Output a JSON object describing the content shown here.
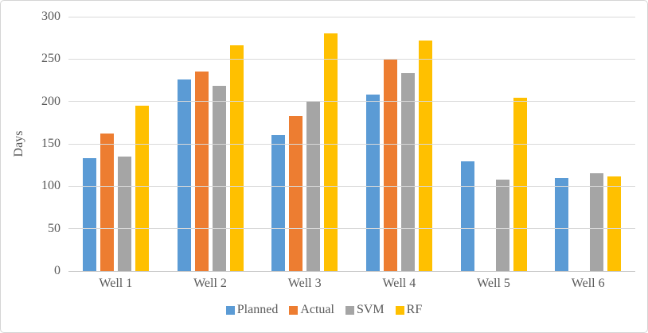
{
  "chart_data": {
    "type": "bar",
    "title": "",
    "xlabel": "",
    "ylabel": "Days",
    "ylim": [
      0,
      300
    ],
    "yticks": [
      0,
      50,
      100,
      150,
      200,
      250,
      300
    ],
    "grid": true,
    "legend_position": "bottom",
    "categories": [
      "Well 1",
      "Well 2",
      "Well 3",
      "Well 4",
      "Well 5",
      "Well 6"
    ],
    "series": [
      {
        "name": "Planned",
        "color": "#5B9BD5",
        "values": [
          133,
          226,
          160,
          208,
          129,
          110
        ]
      },
      {
        "name": "Actual",
        "color": "#ED7D31",
        "values": [
          162,
          235,
          183,
          250,
          null,
          null
        ]
      },
      {
        "name": "SVM",
        "color": "#A5A5A5",
        "values": [
          135,
          218,
          200,
          233,
          108,
          115
        ]
      },
      {
        "name": "RF",
        "color": "#FFC000",
        "values": [
          195,
          266,
          280,
          272,
          204,
          112
        ]
      }
    ],
    "colors": {
      "gridline": "#d9d9d9",
      "axis_line": "#c6c6c6",
      "text": "#595959"
    }
  }
}
